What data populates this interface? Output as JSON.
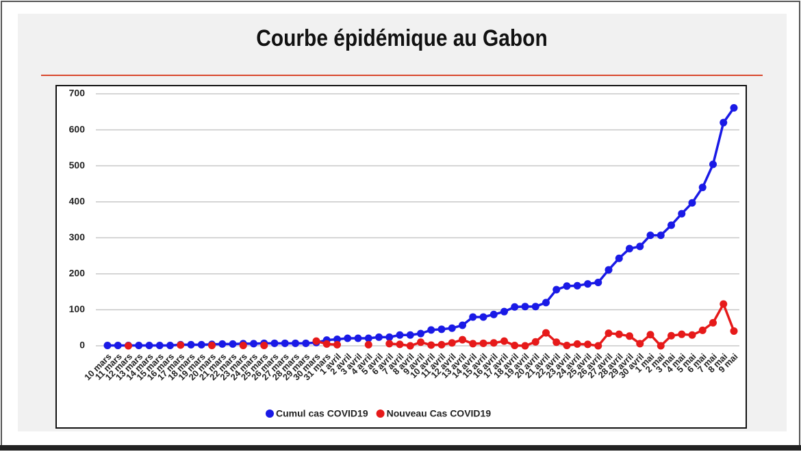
{
  "chart_data": {
    "type": "line",
    "title": "Courbe épidémique au Gabon",
    "categories": [
      "10 mars",
      "11 mars",
      "12 mars",
      "13 mars",
      "14 mars",
      "15 mars",
      "16 mars",
      "17 mars",
      "18 mars",
      "19 mars",
      "20 mars",
      "21 mars",
      "22 mars",
      "23 mars",
      "24 mars",
      "25 mars",
      "26 mars",
      "27 mars",
      "28 mars",
      "29 mars",
      "30 mars",
      "31 mars",
      "1 avril",
      "2 avril",
      "3 avril",
      "4 avril",
      "5 avril",
      "6 avril",
      "7 avril",
      "8 avril",
      "9 avril",
      "10 avril",
      "11 avril",
      "12 avril",
      "13 avril",
      "14 avril",
      "15 avril",
      "16 avril",
      "17 avril",
      "18 avril",
      "19 avril",
      "20 avril",
      "21 avril",
      "22 avril",
      "23 avril",
      "24 avril",
      "25 avril",
      "26 avril",
      "27 avril",
      "28 avril",
      "29 avril",
      "30 avril",
      "1 mai",
      "2 mai",
      "3 mai",
      "4 mai",
      "5 mai",
      "6 mai",
      "7 mai",
      "8 mai",
      "9 mai"
    ],
    "series": [
      {
        "name": "Cumul cas COVID19",
        "color": "#1a1ae6",
        "values": [
          1,
          1,
          1,
          1,
          1,
          1,
          1,
          3,
          3,
          3,
          4,
          5,
          5,
          6,
          6,
          7,
          7,
          7,
          7,
          7,
          9,
          16,
          18,
          21,
          21,
          21,
          24,
          24,
          30,
          30,
          34,
          44,
          46,
          49,
          57,
          80,
          80,
          87,
          95,
          108,
          109,
          109,
          120,
          156,
          166,
          167,
          172,
          176,
          211,
          243,
          270,
          276,
          307,
          307,
          335,
          367,
          397,
          440,
          504,
          620,
          661
        ]
      },
      {
        "name": "Nouveau Cas COVID19",
        "color": "#e61a1a",
        "values": [
          null,
          null,
          0,
          null,
          null,
          null,
          null,
          2,
          null,
          null,
          1,
          null,
          null,
          1,
          null,
          1,
          null,
          null,
          null,
          null,
          13,
          5,
          3,
          null,
          null,
          3,
          null,
          6,
          4,
          0,
          10,
          2,
          3,
          8,
          17,
          6,
          7,
          8,
          13,
          1,
          0,
          11,
          36,
          10,
          1,
          5,
          4,
          0,
          35,
          32,
          27,
          6,
          31,
          0,
          28,
          32,
          30,
          43,
          64,
          116,
          41
        ]
      }
    ],
    "ylim": [
      0,
      700
    ],
    "yticks": [
      0,
      100,
      200,
      300,
      400,
      500,
      600,
      700
    ],
    "grid": true,
    "legend": "bottom"
  }
}
